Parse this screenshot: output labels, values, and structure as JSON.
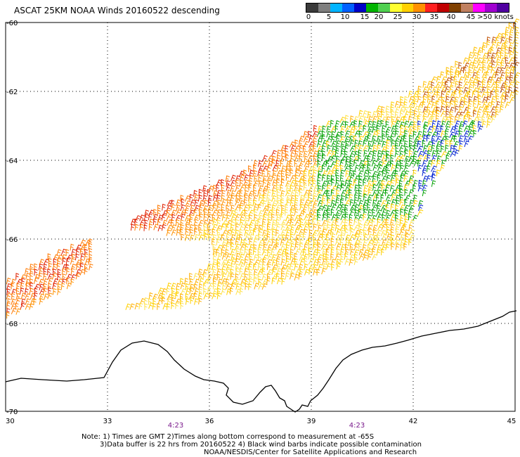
{
  "title": "ASCAT 25KM NOAA Winds 20160522 descending",
  "colorbar": {
    "colors": [
      "#3a3a3a",
      "#7f7f7f",
      "#00b4ff",
      "#0060ff",
      "#0000c8",
      "#00b400",
      "#50d050",
      "#ffff30",
      "#ffd000",
      "#ff9000",
      "#ff2020",
      "#c00000",
      "#804000",
      "#c08060",
      "#ff00ff",
      "#a000d0",
      "#5000a0"
    ],
    "labels": [
      "0",
      "5",
      "10",
      "15",
      "20",
      "25",
      "30",
      "35",
      "40",
      "45",
      ">50 knots"
    ]
  },
  "axes": {
    "lon_labels": [
      "30",
      "33",
      "36",
      "39",
      "42",
      "45"
    ],
    "lat_labels": [
      "-60",
      "-62",
      "-64",
      "-66",
      "-68",
      "-70"
    ],
    "time_labels": [
      "4:23",
      "4:23"
    ]
  },
  "notes": {
    "line1": "Note: 1) Times are GMT 2)Times along bottom correspond to measurement at -65S",
    "line2": "3)Data buffer is 22 hrs from 20160522 4) Black wind barbs indicate possible contamination",
    "line3": "NOAA/NESDIS/Center for Satellite Applications and Research"
  }
}
